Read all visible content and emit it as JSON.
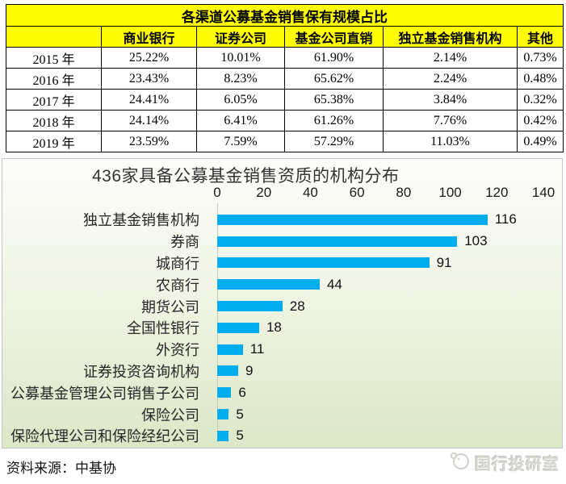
{
  "table": {
    "title": "各渠道公募基金销售保有规模占比",
    "header_bg": "#FFFF00",
    "columns": [
      "商业银行",
      "证券公司",
      "基金公司直销",
      "独立基金销售机构",
      "其他"
    ],
    "rows": [
      {
        "year": "2015 年",
        "values": [
          "25.22%",
          "10.01%",
          "61.90%",
          "2.14%",
          "0.73%"
        ]
      },
      {
        "year": "2016 年",
        "values": [
          "23.43%",
          "8.23%",
          "65.62%",
          "2.24%",
          "0.48%"
        ]
      },
      {
        "year": "2017 年",
        "values": [
          "24.41%",
          "6.05%",
          "65.38%",
          "3.84%",
          "0.32%"
        ]
      },
      {
        "year": "2018 年",
        "values": [
          "24.14%",
          "6.41%",
          "61.26%",
          "7.76%",
          "0.42%"
        ]
      },
      {
        "year": "2019 年",
        "values": [
          "23.59%",
          "7.59%",
          "57.29%",
          "11.03%",
          "0.49%"
        ]
      }
    ]
  },
  "chart_data": {
    "type": "bar",
    "orientation": "horizontal",
    "title": "436家具备公募基金销售资质的机构分布",
    "categories": [
      "独立基金销售机构",
      "券商",
      "城商行",
      "农商行",
      "期货公司",
      "全国性银行",
      "外资行",
      "证券投资咨询机构",
      "公募基金管理公司销售子公司",
      "保险公司",
      "保险代理公司和保险经纪公司"
    ],
    "values": [
      116,
      103,
      91,
      44,
      28,
      18,
      11,
      9,
      6,
      5,
      5
    ],
    "xlabel": "",
    "ylabel": "",
    "xlim": [
      0,
      140
    ],
    "xticks": [
      0,
      20,
      40,
      60,
      80,
      100,
      120,
      140
    ],
    "grid": false,
    "legend": false,
    "bar_color": "#00AEEF",
    "background_top": "#fcfdfa",
    "background_bottom": "#dce7c8"
  },
  "footer": {
    "source": "资料来源：中基协",
    "logo_text": "国行投研室"
  }
}
